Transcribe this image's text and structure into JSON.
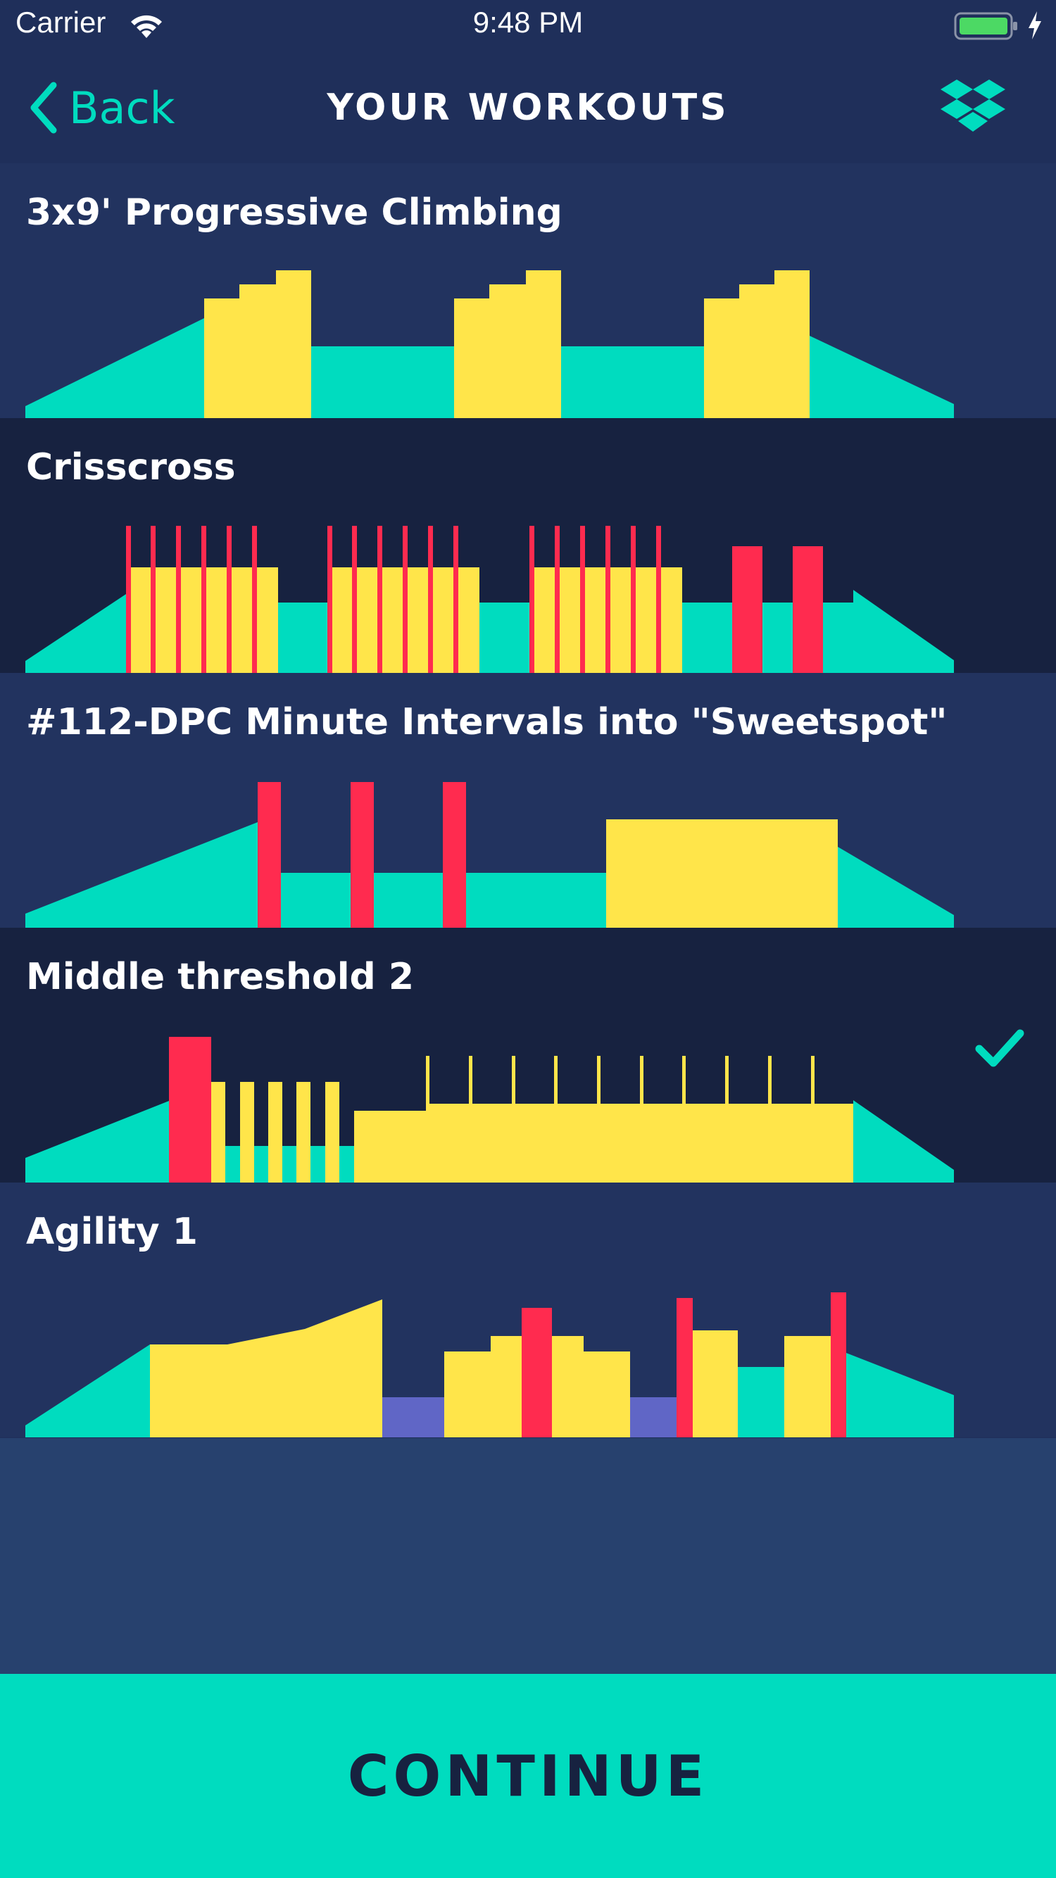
{
  "status_bar": {
    "carrier": "Carrier",
    "time": "9:48 PM",
    "wifi_icon": "wifi-icon",
    "battery_icon": "battery-charging-icon",
    "battery_color": "#4cd964"
  },
  "nav": {
    "back_label": "Back",
    "title": "YOUR WORKOUTS",
    "back_icon": "chevron-left-icon",
    "right_icon": "dropbox-icon"
  },
  "colors": {
    "teal": "#00dcbf",
    "yellow": "#ffe54a",
    "red": "#ff2b4f",
    "purple": "#6066c6",
    "row_light": "#22335f",
    "row_dark": "#172240"
  },
  "workouts": [
    {
      "title": "3x9' Progressive Climbing",
      "selected": false
    },
    {
      "title": "Crisscross",
      "selected": false
    },
    {
      "title": "#112-DPC Minute Intervals into \"Sweetspot\"",
      "selected": false
    },
    {
      "title": "Middle threshold 2",
      "selected": true,
      "selected_icon": "checkmark-icon"
    },
    {
      "title": "Agility 1",
      "selected": false
    }
  ],
  "continue_label": "CONTINUE"
}
